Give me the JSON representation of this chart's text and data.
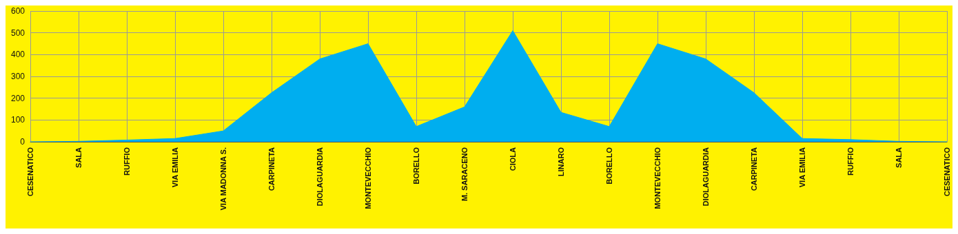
{
  "chart_data": {
    "type": "area",
    "categories": [
      "CESENATICO",
      "SALA",
      "RUFFIO",
      "VIA EMILIA",
      "VIA MADONNA S.",
      "CARPINETA",
      "DIOLAGUARDIA",
      "MONTEVECCHIO",
      "BORELLO",
      "M. SARACENO",
      "CIOLA",
      "LINARO",
      "BORELLO",
      "MONTEVECCHIO",
      "DIOLAGUARDIA",
      "CARPINETA",
      "VIA EMILIA",
      "RUFFIO",
      "SALA",
      "CESENATICO"
    ],
    "series": [
      {
        "color": "#00aeef",
        "values": [
          0,
          2,
          8,
          15,
          50,
          225,
          380,
          450,
          70,
          160,
          510,
          135,
          70,
          450,
          380,
          225,
          15,
          10,
          2,
          0
        ]
      }
    ],
    "ylim": [
      0,
      600
    ],
    "yticks": [
      0,
      100,
      200,
      300,
      400,
      500,
      600
    ],
    "grid": true,
    "marker": "none"
  }
}
